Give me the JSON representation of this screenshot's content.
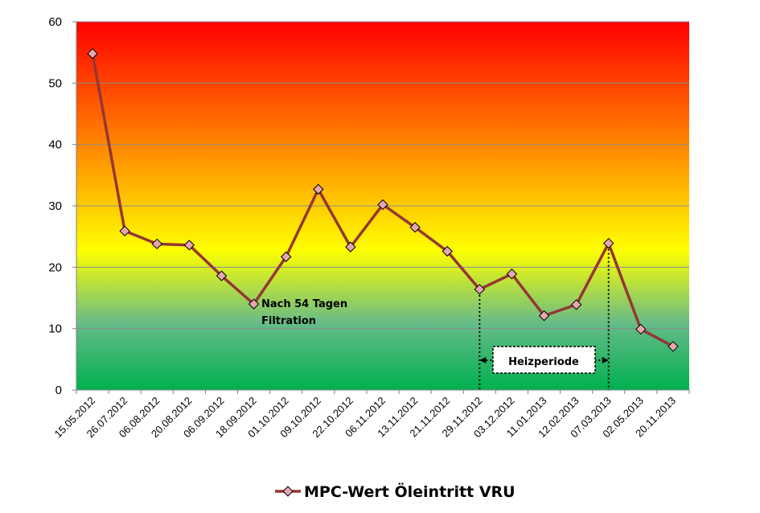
{
  "chart_data": {
    "type": "line",
    "categories": [
      "15.05.2012",
      "26.07.2012",
      "06.08.2012",
      "20.08.2012",
      "06.09.2012",
      "18.09.2012",
      "01.10.2012",
      "09.10.2012",
      "22.10.2012",
      "06.11.2012",
      "13.11.2012",
      "21.11.2012",
      "29.11.2012",
      "03.12.2012",
      "11.01.2013",
      "12.02.2013",
      "07.03.2013",
      "02.05.2013",
      "20.11.2013"
    ],
    "series": [
      {
        "name": "MPC-Wert Öleintritt VRU",
        "values": [
          54.8,
          25.9,
          23.8,
          23.6,
          18.6,
          14.0,
          21.7,
          32.7,
          23.3,
          30.2,
          26.5,
          22.6,
          16.4,
          18.9,
          12.1,
          13.9,
          23.9,
          9.9,
          7.1
        ],
        "color": "#953735",
        "marker_color": "#e6a6b0"
      }
    ],
    "ylim": [
      0,
      60
    ],
    "yticks": [
      0,
      10,
      20,
      30,
      40,
      50,
      60
    ],
    "grid": true,
    "legend": "bottom",
    "background_gradient": [
      "#ff0000",
      "#ff8c00",
      "#ffff00",
      "#66bb88",
      "#00b050"
    ],
    "annotations": {
      "filtration_line1": "Nach  54 Tagen",
      "filtration_line2": "Filtration",
      "heating_label": "Heizperiode"
    }
  }
}
